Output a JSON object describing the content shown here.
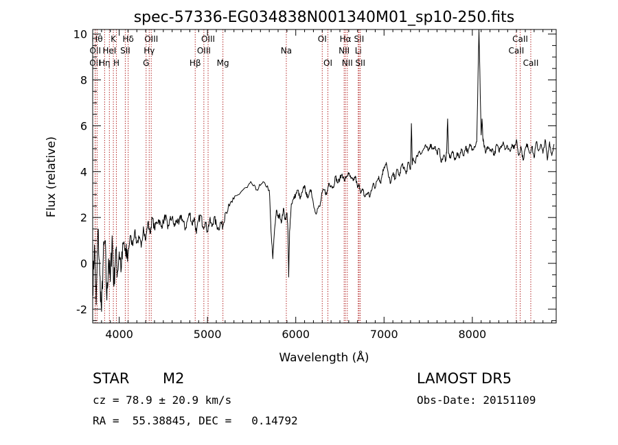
{
  "chart_data": {
    "type": "line",
    "title": "spec-57336-EG034838N001340M01_sp10-250.fits",
    "xlabel": "Wavelength (Å)",
    "ylabel": "Flux (relative)",
    "xlim": [
      3700,
      8950
    ],
    "ylim": [
      -2.6,
      10.2
    ],
    "xticks": [
      4000,
      5000,
      6000,
      7000,
      8000
    ],
    "yticks": [
      -2,
      0,
      2,
      4,
      6,
      8,
      10
    ],
    "grid": false,
    "series": [
      {
        "values_x": [
          3700,
          3720,
          3740,
          3760,
          3780,
          3800,
          3820,
          3840,
          3860,
          3880,
          3900,
          3920,
          3940,
          3960,
          3980,
          4000,
          4025,
          4050,
          4075,
          4100,
          4125,
          4150,
          4175,
          4200,
          4225,
          4250,
          4275,
          4300,
          4325,
          4350,
          4375,
          4400,
          4425,
          4450,
          4475,
          4500,
          4525,
          4550,
          4575,
          4600,
          4625,
          4650,
          4675,
          4700,
          4725,
          4750,
          4775,
          4800,
          4825,
          4850,
          4875,
          4900,
          4925,
          4950,
          4975,
          5000,
          5025,
          5050,
          5075,
          5100,
          5125,
          5150,
          5175,
          5200,
          5250,
          5300,
          5350,
          5400,
          5450,
          5500,
          5550,
          5600,
          5650,
          5700,
          5720,
          5740,
          5760,
          5780,
          5800,
          5820,
          5840,
          5860,
          5880,
          5900,
          5910,
          5920,
          5930,
          5950,
          5975,
          6000,
          6025,
          6050,
          6075,
          6100,
          6125,
          6150,
          6175,
          6200,
          6225,
          6250,
          6275,
          6300,
          6325,
          6350,
          6375,
          6400,
          6425,
          6450,
          6475,
          6500,
          6525,
          6550,
          6575,
          6600,
          6625,
          6650,
          6675,
          6700,
          6720,
          6740,
          6760,
          6780,
          6800,
          6820,
          6840,
          6860,
          6880,
          6900,
          6920,
          6940,
          6960,
          6980,
          7000,
          7025,
          7050,
          7075,
          7100,
          7125,
          7150,
          7175,
          7200,
          7225,
          7250,
          7275,
          7300,
          7310,
          7320,
          7330,
          7350,
          7375,
          7400,
          7425,
          7450,
          7475,
          7500,
          7525,
          7550,
          7575,
          7600,
          7625,
          7650,
          7675,
          7700,
          7710,
          7720,
          7730,
          7750,
          7775,
          7800,
          7825,
          7850,
          7875,
          7900,
          7925,
          7950,
          7975,
          8000,
          8025,
          8050,
          8075,
          8100,
          8110,
          8120,
          8130,
          8150,
          8175,
          8200,
          8225,
          8250,
          8275,
          8300,
          8325,
          8350,
          8375,
          8400,
          8425,
          8450,
          8475,
          8500,
          8525,
          8550,
          8575,
          8600,
          8625,
          8650,
          8675,
          8700,
          8725,
          8750,
          8775,
          8800,
          8825,
          8850,
          8875,
          8900,
          8925
        ],
        "values": [
          -1.2,
          0.8,
          -1.8,
          1.5,
          -0.5,
          -2.1,
          0.3,
          1.0,
          -1.6,
          0.2,
          -0.8,
          1.2,
          -1.0,
          0.6,
          -0.4,
          0.5,
          -0.2,
          0.9,
          0.3,
          0.4,
          1.2,
          0.8,
          1.4,
          0.9,
          1.1,
          0.7,
          1.6,
          1.0,
          1.8,
          1.3,
          2.0,
          1.5,
          1.8,
          1.9,
          1.6,
          1.8,
          2.1,
          1.5,
          1.9,
          2.0,
          1.6,
          1.9,
          1.7,
          2.1,
          1.8,
          1.5,
          1.9,
          2.2,
          1.7,
          2.0,
          1.3,
          1.9,
          2.1,
          1.6,
          1.8,
          1.4,
          1.9,
          1.6,
          2.0,
          1.7,
          1.5,
          1.8,
          1.6,
          2.2,
          2.5,
          2.8,
          3.0,
          3.2,
          3.3,
          3.5,
          3.2,
          3.4,
          3.5,
          3.2,
          1.4,
          0.2,
          1.5,
          2.3,
          2.0,
          2.1,
          1.8,
          2.4,
          1.9,
          2.2,
          1.6,
          -0.6,
          1.4,
          2.6,
          2.8,
          3.0,
          3.2,
          2.8,
          3.1,
          3.4,
          2.9,
          3.0,
          3.2,
          2.6,
          2.2,
          2.4,
          2.5,
          3.1,
          3.2,
          3.0,
          3.5,
          3.4,
          3.3,
          3.8,
          3.5,
          3.7,
          3.9,
          3.6,
          3.8,
          3.9,
          3.7,
          3.6,
          3.8,
          3.3,
          3.4,
          3.1,
          3.2,
          2.9,
          3.0,
          3.1,
          2.9,
          3.2,
          3.5,
          3.3,
          3.6,
          3.8,
          3.5,
          3.9,
          4.2,
          4.4,
          3.8,
          3.5,
          3.9,
          3.7,
          4.1,
          3.8,
          4.3,
          4.2,
          3.9,
          4.4,
          4.1,
          6.1,
          4.3,
          4.6,
          4.4,
          4.7,
          4.9,
          4.8,
          5.0,
          5.1,
          4.9,
          5.2,
          5.0,
          5.1,
          4.8,
          5.0,
          4.4,
          4.7,
          4.5,
          5.0,
          6.3,
          4.8,
          4.6,
          4.9,
          4.5,
          4.8,
          4.6,
          5.0,
          4.7,
          5.1,
          4.8,
          5.2,
          5.0,
          5.1,
          5.3,
          10.2,
          5.6,
          6.3,
          5.4,
          5.2,
          4.8,
          5.1,
          4.9,
          5.0,
          4.7,
          5.2,
          4.9,
          5.1,
          5.3,
          5.0,
          5.1,
          4.9,
          5.2,
          5.0,
          5.4,
          4.7,
          5.1,
          4.5,
          5.0,
          5.2,
          4.8,
          5.1,
          4.6,
          5.3,
          4.9,
          5.2,
          4.8,
          5.4,
          4.5,
          5.3,
          4.7,
          5.2
        ]
      }
    ],
    "lines": [
      {
        "label": "OII",
        "x": 3727,
        "row": 2
      },
      {
        "label": "OII",
        "x": 3729,
        "row": 1
      },
      {
        "label": "Hθ",
        "x": 3750,
        "row": 0
      },
      {
        "label": "Hη",
        "x": 3835,
        "row": 2
      },
      {
        "label": "HeI",
        "x": 3889,
        "row": 1
      },
      {
        "label": "K",
        "x": 3934,
        "row": 0
      },
      {
        "label": "H",
        "x": 3968,
        "row": 2
      },
      {
        "label": "Hδ",
        "x": 4102,
        "row": 0
      },
      {
        "label": "SII",
        "x": 4069,
        "row": 1
      },
      {
        "label": "OIII",
        "x": 4363,
        "row": 0
      },
      {
        "label": "Hγ",
        "x": 4340,
        "row": 1
      },
      {
        "label": "G",
        "x": 4305,
        "row": 2
      },
      {
        "label": "Hβ",
        "x": 4861,
        "row": 2
      },
      {
        "label": "OIII",
        "x": 5007,
        "row": 0
      },
      {
        "label": "OIII",
        "x": 4959,
        "row": 1
      },
      {
        "label": "Mg",
        "x": 5175,
        "row": 2
      },
      {
        "label": "Na",
        "x": 5893,
        "row": 1
      },
      {
        "label": "OI",
        "x": 6300,
        "row": 0
      },
      {
        "label": "OI",
        "x": 6364,
        "row": 2
      },
      {
        "label": "Hα",
        "x": 6563,
        "row": 0
      },
      {
        "label": "NII",
        "x": 6548,
        "row": 1
      },
      {
        "label": "NII",
        "x": 6584,
        "row": 2
      },
      {
        "label": "SII",
        "x": 6717,
        "row": 0
      },
      {
        "label": "Li",
        "x": 6708,
        "row": 1
      },
      {
        "label": "SII",
        "x": 6731,
        "row": 2
      },
      {
        "label": "CaII",
        "x": 8542,
        "row": 0
      },
      {
        "label": "CaII",
        "x": 8498,
        "row": 1
      },
      {
        "label": "CaII",
        "x": 8662,
        "row": 2
      }
    ]
  },
  "info": {
    "object_class": "STAR",
    "subclass": "M2",
    "survey": "LAMOST DR5",
    "cz": "cz = 78.9 ± 20.9 km/s",
    "obs_date": "Obs-Date: 20151109",
    "radec": "RA =  55.38845, DEC =   0.14792"
  },
  "colors": {
    "spectrum": "#000000",
    "line_marker": "#b22222",
    "frame": "#000000"
  }
}
